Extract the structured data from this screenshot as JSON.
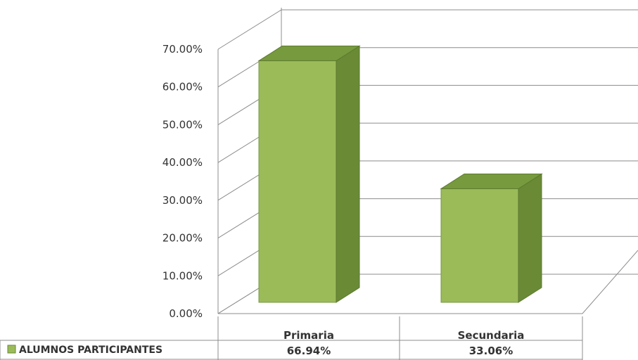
{
  "chart_data": {
    "type": "bar",
    "style": "3d-column-with-data-table",
    "categories": [
      "Primaria",
      "Secundaria"
    ],
    "series": [
      {
        "name": "ALUMNOS PARTICIPANTES",
        "values": [
          66.94,
          33.06
        ],
        "value_labels": [
          "66.94%",
          "33.06%"
        ],
        "color": "#9bbb59",
        "side_color": "#6a8a36",
        "top_color": "#779a3f"
      }
    ],
    "yticks": [
      "0.00%",
      "10.00%",
      "20.00%",
      "30.00%",
      "40.00%",
      "50.00%",
      "60.00%",
      "70.00%"
    ],
    "ylim": [
      0,
      70
    ],
    "title": "",
    "xlabel": "",
    "ylabel": "",
    "grid": true,
    "legend": "data-table-left"
  }
}
